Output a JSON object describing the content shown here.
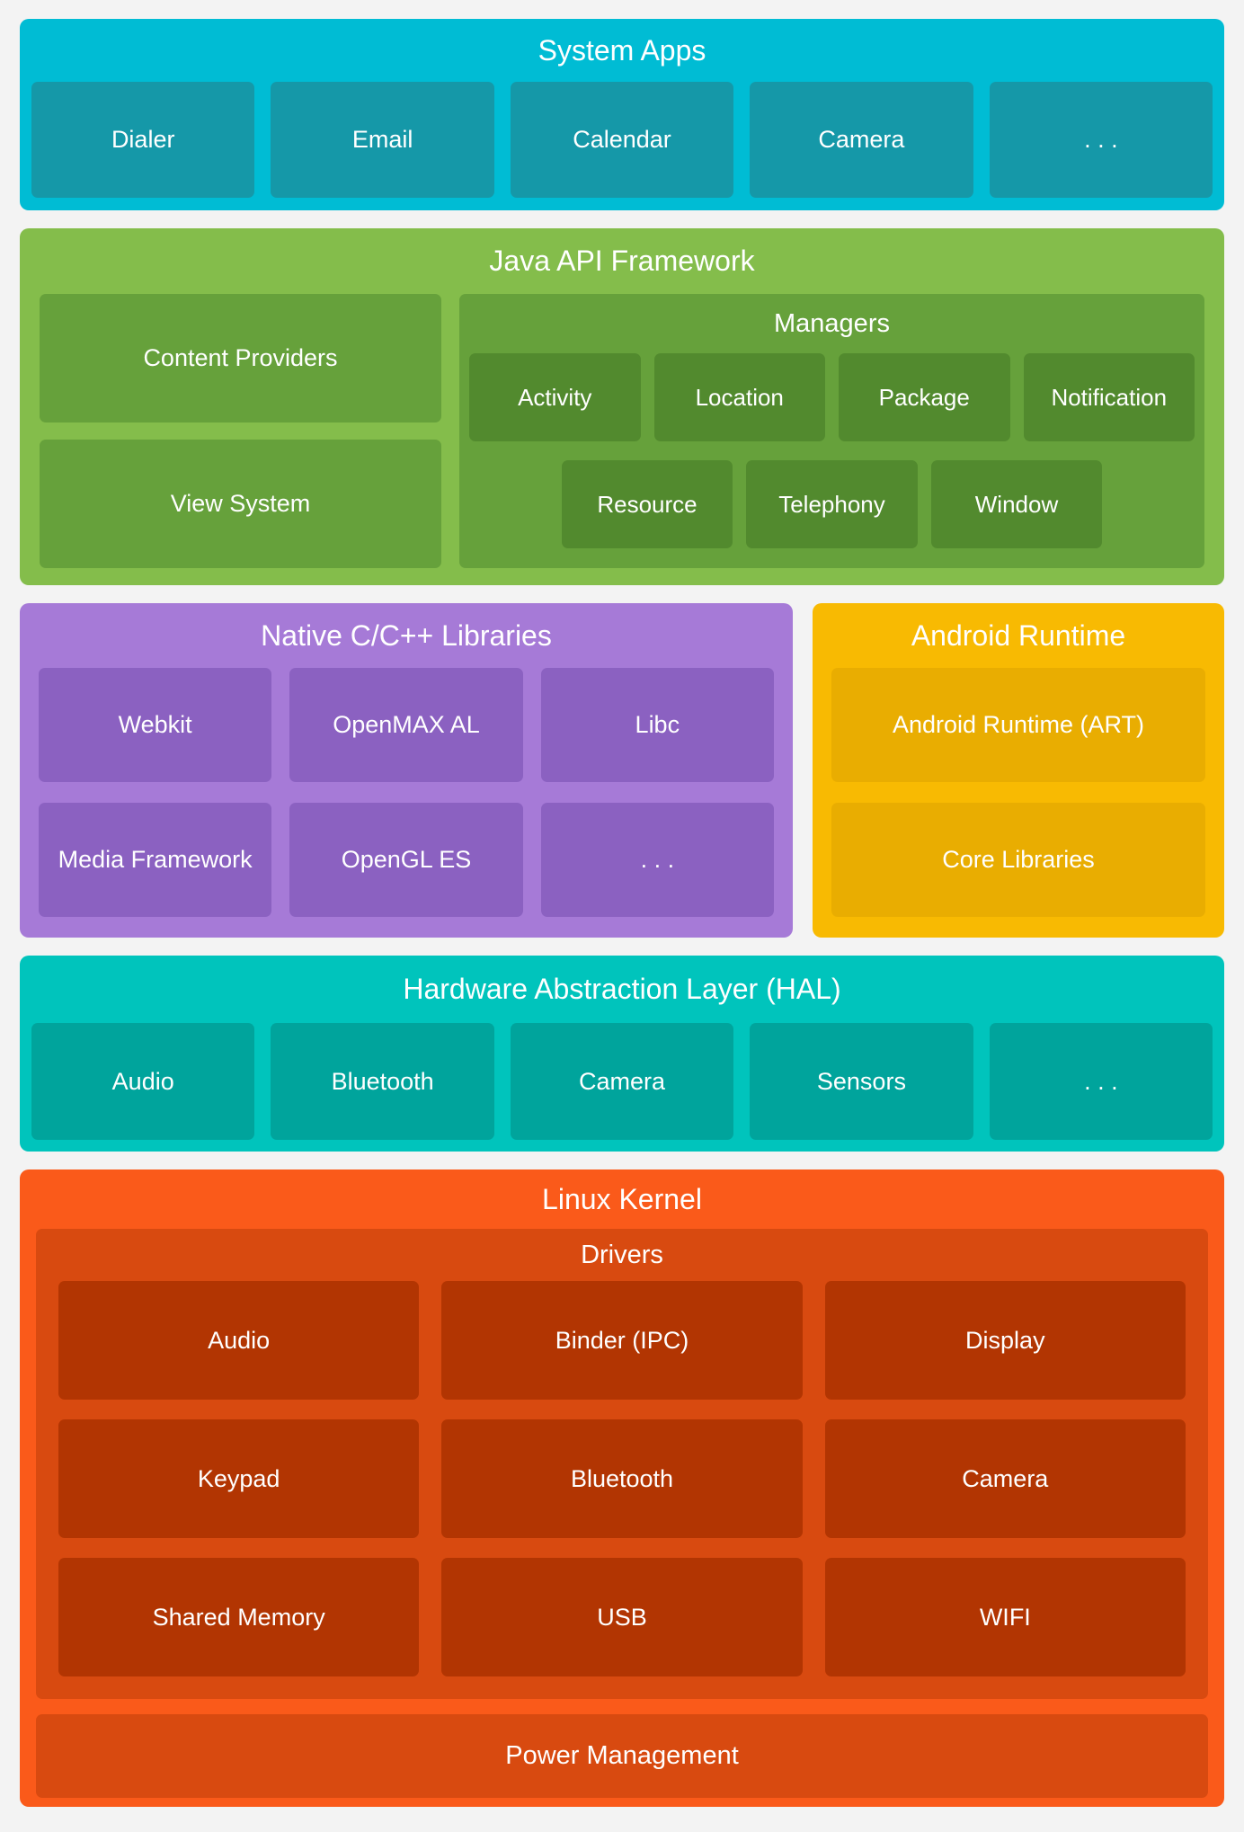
{
  "colors": {
    "page_bg": "#F3F3F3",
    "text": "#FFFFFF",
    "system_apps_bg": "#00BCD4",
    "system_apps_box": "#1598A8",
    "java_bg": "#84BD4B",
    "java_box": "#66A13B",
    "java_inner_box": "#528A2E",
    "native_bg": "#A67AD7",
    "native_box": "#8B61C1",
    "runtime_bg": "#F8BA02",
    "runtime_box": "#E9AD01",
    "hal_bg": "#00C4BC",
    "hal_box": "#00A49C",
    "kernel_bg": "#FA5A1A",
    "kernel_container": "#D84A10",
    "kernel_box": "#B23502"
  },
  "system_apps": {
    "title": "System Apps",
    "items": [
      "Dialer",
      "Email",
      "Calendar",
      "Camera",
      ". . ."
    ]
  },
  "java_api": {
    "title": "Java API Framework",
    "left_items": [
      "Content Providers",
      "View System"
    ],
    "managers": {
      "title": "Managers",
      "row1": [
        "Activity",
        "Location",
        "Package",
        "Notification"
      ],
      "row2": [
        "Resource",
        "Telephony",
        "Window"
      ]
    }
  },
  "native_libs": {
    "title": "Native C/C++ Libraries",
    "row1": [
      "Webkit",
      "OpenMAX AL",
      "Libc"
    ],
    "row2": [
      "Media Framework",
      "OpenGL ES",
      ". . ."
    ]
  },
  "android_runtime": {
    "title": "Android Runtime",
    "items": [
      "Android Runtime (ART)",
      "Core Libraries"
    ]
  },
  "hal": {
    "title": "Hardware Abstraction Layer (HAL)",
    "items": [
      "Audio",
      "Bluetooth",
      "Camera",
      "Sensors",
      ". . ."
    ]
  },
  "linux_kernel": {
    "title": "Linux Kernel",
    "drivers": {
      "title": "Drivers",
      "rows": [
        [
          "Audio",
          "Binder (IPC)",
          "Display"
        ],
        [
          "Keypad",
          "Bluetooth",
          "Camera"
        ],
        [
          "Shared Memory",
          "USB",
          "WIFI"
        ]
      ]
    },
    "power_label": "Power Management"
  }
}
